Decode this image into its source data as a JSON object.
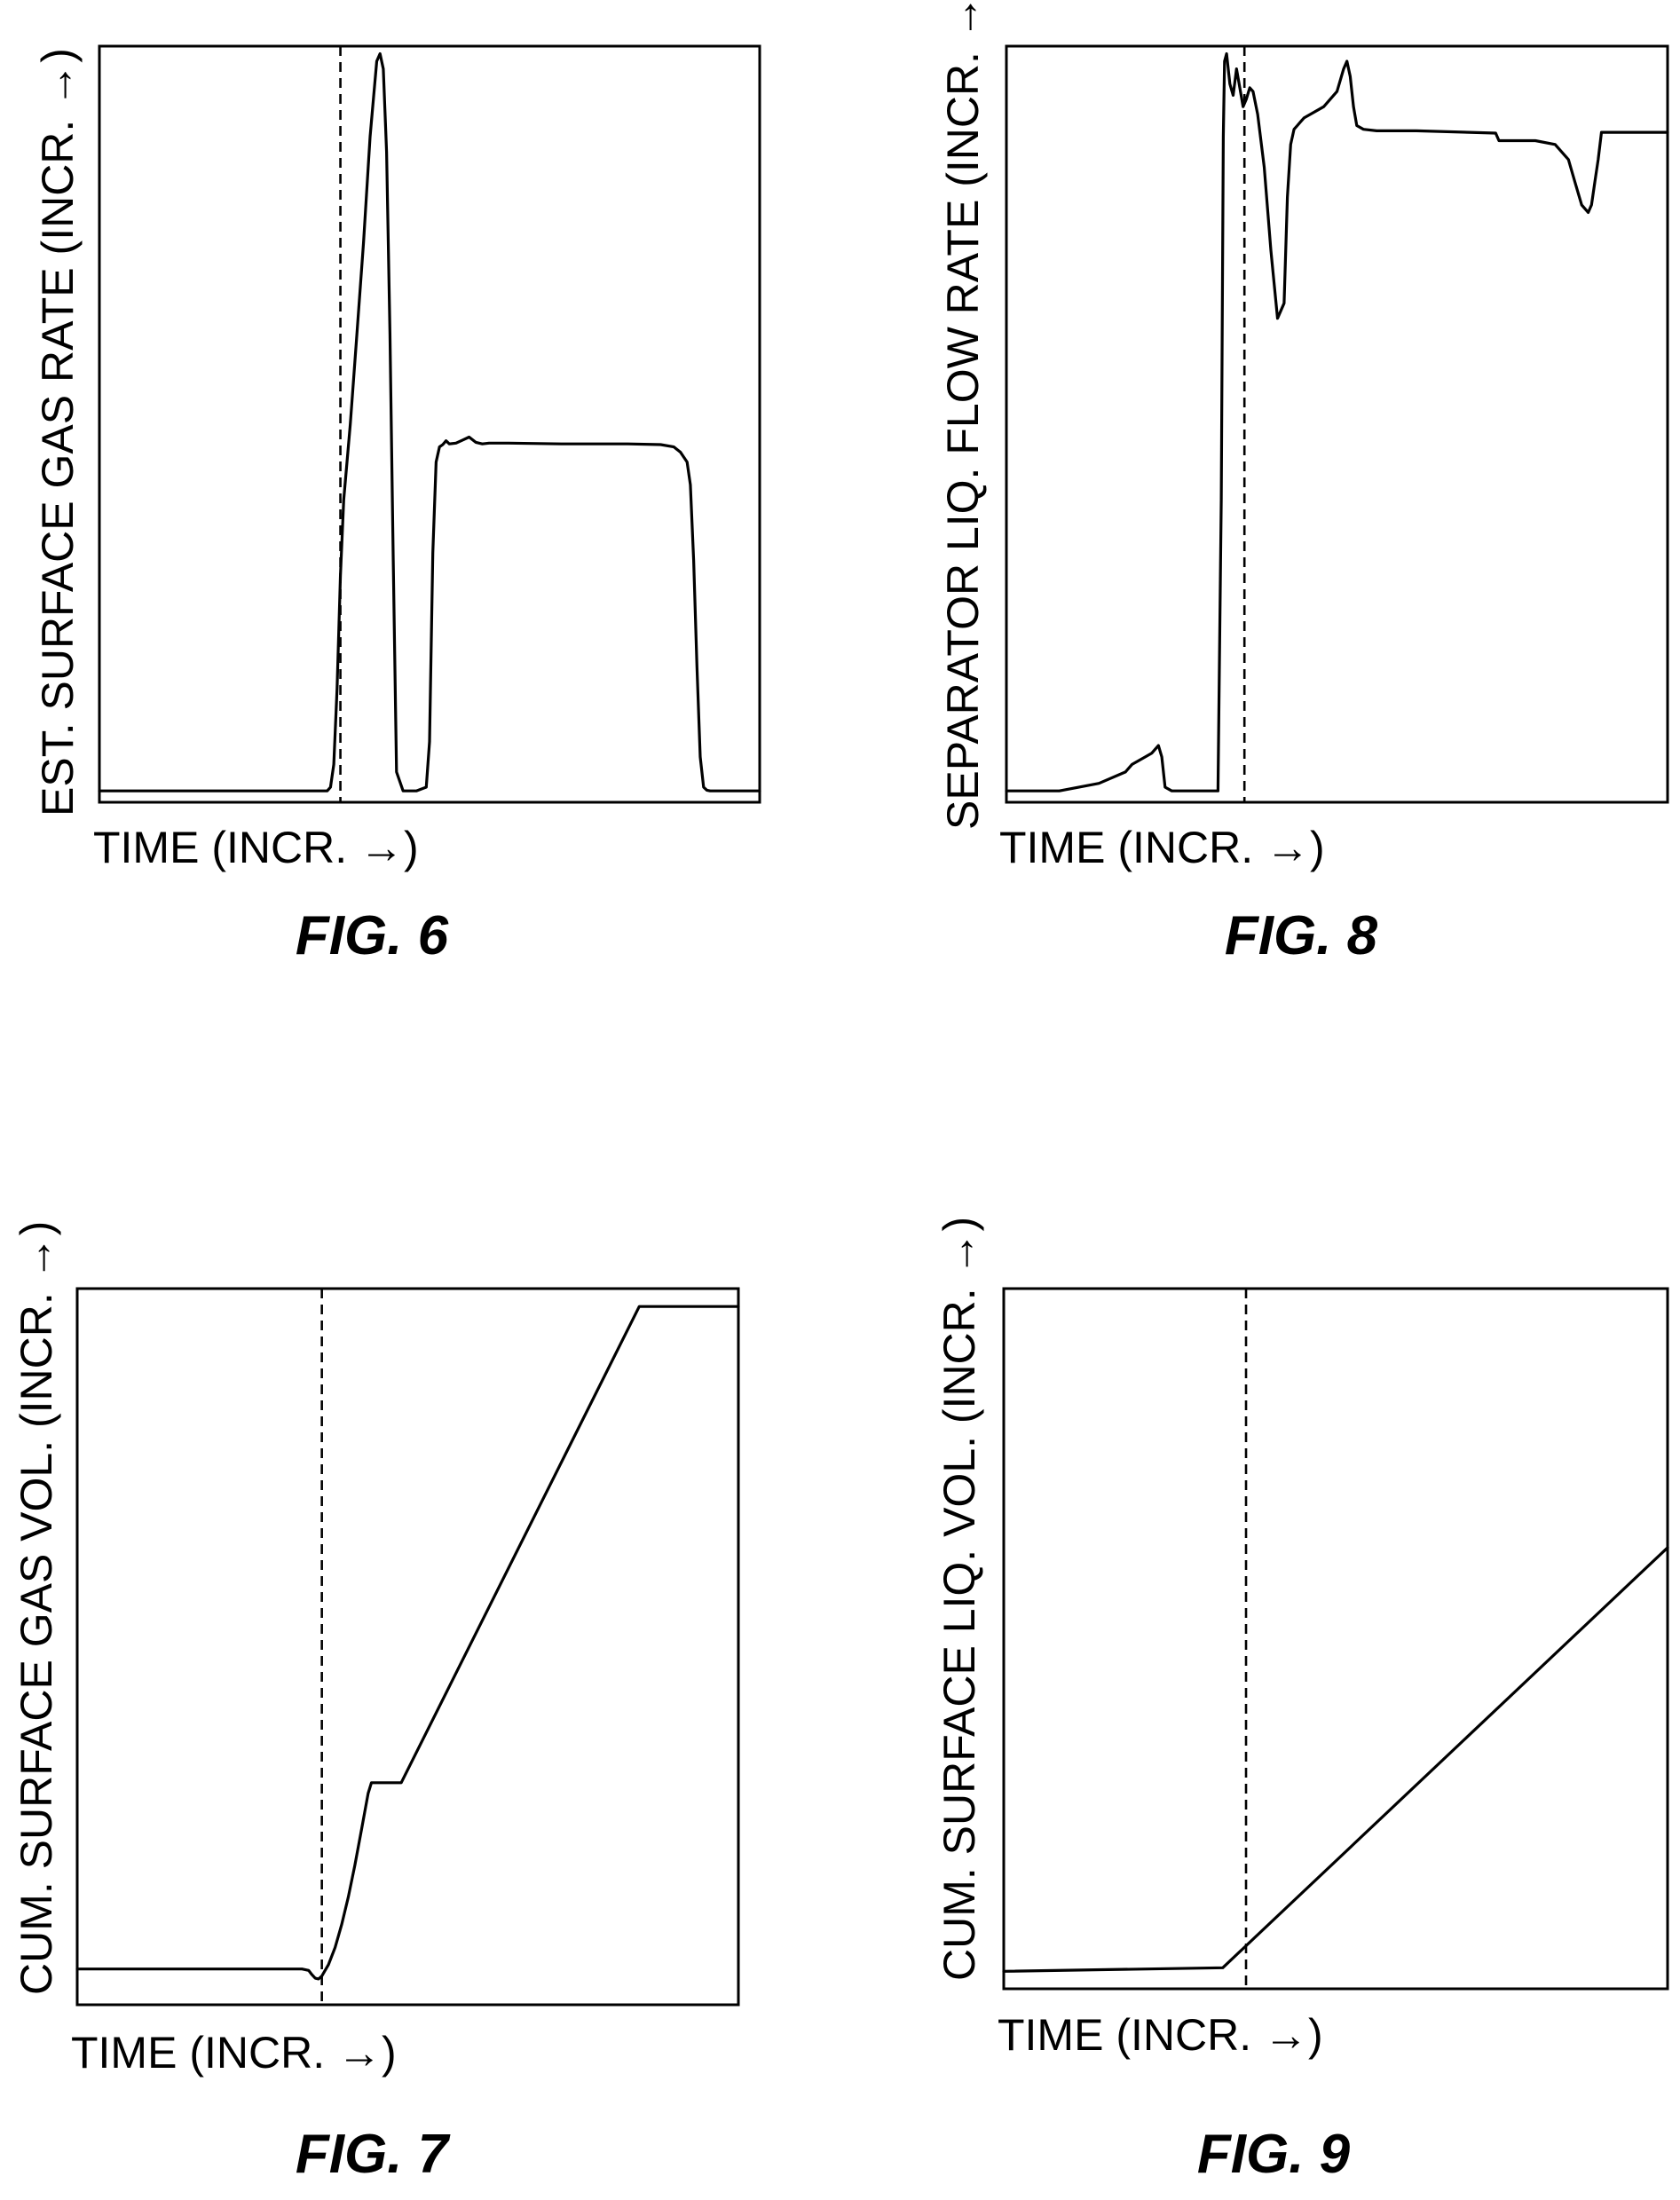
{
  "figures": [
    {
      "id": "fig6",
      "caption": "FIG. 6",
      "xlabel": "TIME (INCR. →)",
      "ylabel": "EST. SURFACE GAS RATE (INCR. →)"
    },
    {
      "id": "fig8",
      "caption": "FIG. 8",
      "xlabel": "TIME (INCR. →)",
      "ylabel": "SEPARATOR LIQ. FLOW RATE (INCR. →)"
    },
    {
      "id": "fig7",
      "caption": "FIG. 7",
      "xlabel": "TIME (INCR. →)",
      "ylabel": "CUM. SURFACE GAS VOL. (INCR. →)"
    },
    {
      "id": "fig9",
      "caption": "FIG. 9",
      "xlabel": "TIME (INCR. →)",
      "ylabel": "CUM. SURFACE LIQ. VOL. (INCR. →)"
    }
  ],
  "chart_data": [
    {
      "type": "line",
      "xlabel": "TIME (INCR. →)",
      "ylabel": "EST. SURFACE GAS RATE (INCR. →)",
      "xlim": [
        0,
        100
      ],
      "ylim": [
        0,
        100
      ],
      "grid": false,
      "ticks": false,
      "vline_x": 36.5,
      "series": [
        {
          "x": [
            0,
            34.5,
            35,
            35.5,
            36,
            36.5,
            37,
            38,
            39,
            40,
            41,
            42,
            42.5,
            43,
            43.5,
            44,
            44.5,
            45,
            46,
            48,
            49.5,
            50,
            50.5,
            51,
            51.5,
            52,
            52.5,
            53,
            54,
            55,
            56,
            57,
            58,
            59,
            62,
            70,
            80,
            85,
            87,
            88,
            89,
            89.5,
            90,
            90.5,
            91,
            91.5,
            92,
            92.5,
            93,
            95,
            100
          ],
          "y": [
            1.5,
            1.5,
            2,
            5,
            15,
            30,
            40,
            50,
            62,
            74,
            88,
            98,
            99,
            97,
            86,
            62,
            32,
            4,
            1.5,
            1.5,
            2,
            8,
            33,
            45,
            47,
            47.3,
            47.8,
            47.4,
            47.5,
            47.9,
            48.3,
            47.6,
            47.4,
            47.5,
            47.5,
            47.4,
            47.4,
            47.3,
            47,
            46.3,
            45,
            42,
            32,
            18,
            6,
            2,
            1.6,
            1.5,
            1.5,
            1.5,
            1.5
          ]
        }
      ]
    },
    {
      "type": "line",
      "xlabel": "TIME (INCR. →)",
      "ylabel": "SEPARATOR LIQ. FLOW RATE (INCR. →)",
      "xlim": [
        0,
        100
      ],
      "ylim": [
        0,
        100
      ],
      "grid": false,
      "ticks": false,
      "vline_x": 36,
      "series": [
        {
          "x": [
            0,
            8,
            14,
            18,
            19,
            20,
            21,
            22,
            23,
            23.5,
            24,
            25,
            30,
            32,
            32.5,
            32.8,
            33,
            33.3,
            33.8,
            34.3,
            34.8,
            35.3,
            35.8,
            36.3,
            36.8,
            37.3,
            38,
            39,
            40,
            41,
            42,
            42.5,
            43,
            43.5,
            44,
            44.5,
            45,
            48,
            50,
            51,
            51.5,
            52,
            52.5,
            53,
            54,
            56,
            58,
            60,
            62,
            70,
            74,
            74.5,
            75,
            80,
            83,
            85,
            86,
            87,
            88,
            88.5,
            89,
            89.5,
            90,
            95,
            100
          ],
          "y": [
            1.5,
            1.5,
            2.5,
            4,
            5,
            5.5,
            6,
            6.5,
            7.5,
            6,
            2,
            1.5,
            1.5,
            1.5,
            40,
            88,
            98,
            99,
            95,
            93.5,
            97,
            94.5,
            92,
            93,
            94.5,
            94,
            91,
            84,
            73,
            64,
            66,
            80,
            87,
            89,
            89.5,
            90,
            90.5,
            92,
            94,
            97,
            98,
            96,
            92,
            89.5,
            89,
            88.8,
            88.8,
            88.8,
            88.8,
            88.6,
            88.5,
            87.5,
            87.5,
            87.5,
            87,
            85,
            82,
            79,
            78,
            79,
            82,
            85,
            88.6,
            88.6,
            88.6
          ]
        }
      ]
    },
    {
      "type": "line",
      "xlabel": "TIME (INCR. →)",
      "ylabel": "CUM. SURFACE GAS VOL. (INCR. →)",
      "xlim": [
        0,
        100
      ],
      "ylim": [
        0,
        100
      ],
      "grid": false,
      "ticks": false,
      "vline_x": 37,
      "series": [
        {
          "x": [
            0,
            33,
            34,
            35,
            35.5,
            36,
            36.5,
            37,
            38,
            39,
            40,
            41,
            42,
            43,
            44,
            44.5,
            47,
            49,
            85,
            87,
            100
          ],
          "y": [
            5,
            5,
            5,
            4.8,
            4.2,
            3.7,
            3.6,
            4,
            5.6,
            8,
            11.2,
            15,
            19.5,
            24.5,
            29.5,
            31,
            31,
            31,
            97.5,
            97.5,
            97.5
          ]
        }
      ]
    },
    {
      "type": "line",
      "xlabel": "TIME (INCR. →)",
      "ylabel": "CUM. SURFACE LIQ. VOL. (INCR. →)",
      "xlim": [
        0,
        100
      ],
      "ylim": [
        0,
        100
      ],
      "grid": false,
      "ticks": false,
      "vline_x": 36.5,
      "series": [
        {
          "x": [
            0,
            33,
            100
          ],
          "y": [
            2.5,
            3,
            63
          ]
        }
      ]
    }
  ]
}
